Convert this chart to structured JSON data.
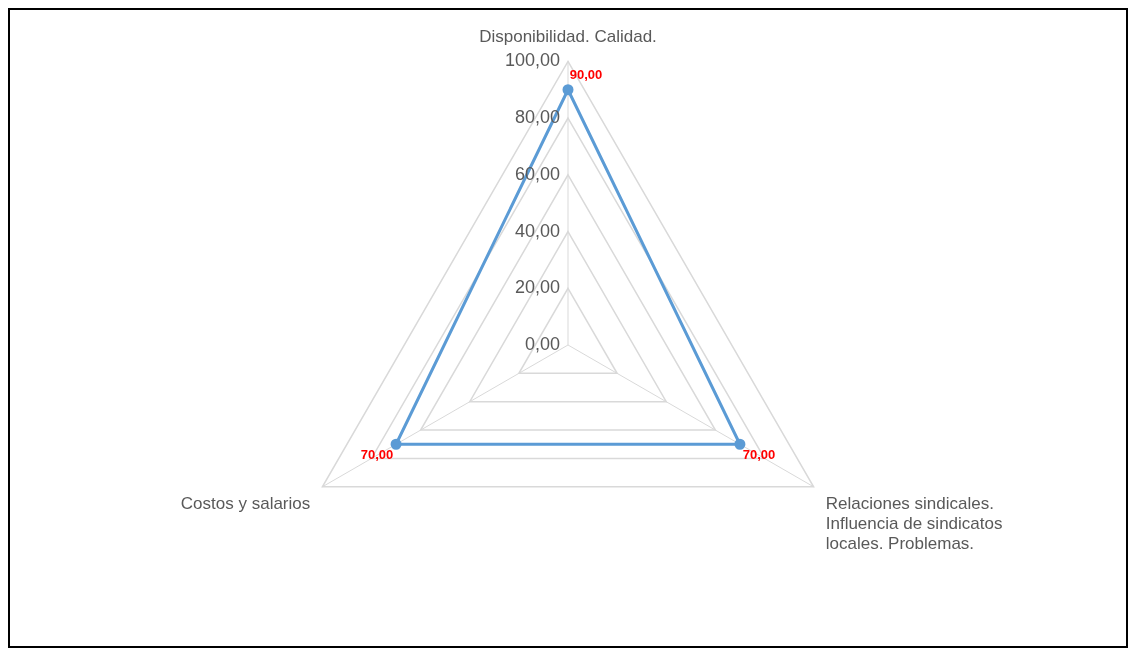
{
  "chart_data": {
    "type": "radar",
    "categories": [
      "Disponibilidad. Calidad.",
      "Relaciones sindicales. Influencia de sindicatos locales. Problemas.",
      "Costos y salarios"
    ],
    "series": [
      {
        "color": "#5b9bd5",
        "values": [
          90,
          70,
          70
        ],
        "value_labels": [
          "90,00",
          "70,00",
          "70,00"
        ]
      }
    ],
    "ylim": [
      0,
      100
    ],
    "yticks": [
      {
        "value": 0,
        "label": "0,00"
      },
      {
        "value": 20,
        "label": "20,00"
      },
      {
        "value": 40,
        "label": "40,00"
      },
      {
        "value": 60,
        "label": "60,00"
      },
      {
        "value": 80,
        "label": "80,00"
      },
      {
        "value": 100,
        "label": "100,00"
      }
    ],
    "grid": true,
    "legend": false,
    "marker": "circle",
    "line_style": "solid"
  }
}
